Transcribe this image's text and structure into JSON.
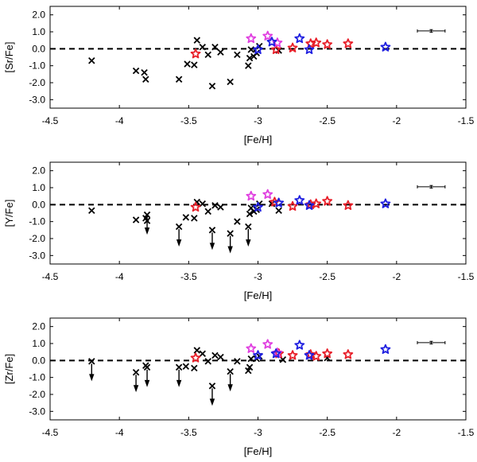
{
  "chart_data": [
    {
      "type": "scatter",
      "ylabel": "[Sr/Fe]",
      "xlabel": "[Fe/H]",
      "xlim": [
        -4.5,
        -1.5
      ],
      "ylim": [
        -3.5,
        2.5
      ],
      "xticks": [
        "-4.5",
        "-4",
        "-3.5",
        "-3",
        "-2.5",
        "-2",
        "-1.5"
      ],
      "yticks": [
        "2.0",
        "1.0",
        "0.0",
        "-1.0",
        "-2.0",
        "-3.0"
      ],
      "reference_line_y": 0,
      "error_bar": {
        "x": -1.75,
        "y": 1.05,
        "xerr": 0.1,
        "yerr": 0.08
      },
      "series": [
        {
          "name": "crosses",
          "marker": "x",
          "color": "#000000",
          "x": [
            -4.2,
            -3.88,
            -3.82,
            -3.81,
            -3.57,
            -3.51,
            -3.46,
            -3.44,
            -3.4,
            -3.36,
            -3.33,
            -3.31,
            -3.27,
            -3.2,
            -3.15,
            -3.07,
            -3.06,
            -3.05,
            -3.03,
            -3.01,
            -2.99,
            -2.85
          ],
          "y": [
            -0.7,
            -1.3,
            -1.4,
            -1.8,
            -1.8,
            -0.9,
            -0.95,
            0.5,
            0.1,
            -0.35,
            -2.2,
            0.1,
            -0.2,
            -1.95,
            -0.35,
            -1.0,
            -0.55,
            -0.05,
            -0.45,
            -0.25,
            0.15,
            -0.1
          ],
          "upper_limits": []
        },
        {
          "name": "red-stars",
          "marker": "star",
          "color": "#e8202a",
          "x": [
            -3.45,
            -2.87,
            -2.75,
            -2.62,
            -2.58,
            -2.5,
            -2.35
          ],
          "y": [
            -0.3,
            -0.05,
            0.05,
            0.3,
            0.35,
            0.25,
            0.3
          ]
        },
        {
          "name": "magenta-stars",
          "marker": "star",
          "color": "#e040e0",
          "x": [
            -3.05,
            -2.93,
            -2.86
          ],
          "y": [
            0.6,
            0.75,
            0.35
          ]
        },
        {
          "name": "blue-stars",
          "marker": "star",
          "color": "#2020e0",
          "x": [
            -3.0,
            -2.9,
            -2.7,
            -2.63,
            -2.08
          ],
          "y": [
            -0.05,
            0.4,
            0.6,
            -0.05,
            0.1
          ]
        }
      ]
    },
    {
      "type": "scatter",
      "ylabel": "[Y/Fe]",
      "xlabel": "[Fe/H]",
      "xlim": [
        -4.5,
        -1.5
      ],
      "ylim": [
        -3.5,
        2.5
      ],
      "xticks": [
        "-4.5",
        "-4",
        "-3.5",
        "-3",
        "-2.5",
        "-2",
        "-1.5"
      ],
      "yticks": [
        "2.0",
        "1.0",
        "0.0",
        "-1.0",
        "-2.0",
        "-3.0"
      ],
      "reference_line_y": 0,
      "error_bar": {
        "x": -1.75,
        "y": 1.05,
        "xerr": 0.1,
        "yerr": 0.08
      },
      "series": [
        {
          "name": "crosses",
          "marker": "x",
          "color": "#000000",
          "x": [
            -4.2,
            -3.88,
            -3.81,
            -3.8,
            -3.8,
            -3.57,
            -3.52,
            -3.46,
            -3.44,
            -3.4,
            -3.36,
            -3.33,
            -3.31,
            -3.27,
            -3.2,
            -3.15,
            -3.07,
            -3.06,
            -3.05,
            -3.03,
            -3.01,
            -2.99,
            -2.9,
            -2.85
          ],
          "y": [
            -0.35,
            -0.9,
            -0.8,
            -0.6,
            -0.95,
            -1.3,
            -0.75,
            -0.8,
            0.15,
            0.05,
            -0.4,
            -1.5,
            -0.05,
            -0.15,
            -1.7,
            -1.0,
            -1.3,
            -0.55,
            -0.2,
            -0.4,
            -0.3,
            0.05,
            0.05,
            -0.35
          ],
          "upper_limits": [
            3,
            5,
            11,
            14,
            16
          ]
        },
        {
          "name": "red-stars",
          "marker": "star",
          "color": "#e8202a",
          "x": [
            -3.45,
            -2.88,
            -2.75,
            -2.62,
            -2.58,
            -2.5,
            -2.35
          ],
          "y": [
            -0.15,
            0.15,
            -0.1,
            0.0,
            0.05,
            0.2,
            -0.05
          ]
        },
        {
          "name": "magenta-stars",
          "marker": "star",
          "color": "#e040e0",
          "x": [
            -3.05,
            -2.93
          ],
          "y": [
            0.5,
            0.6
          ]
        },
        {
          "name": "blue-stars",
          "marker": "star",
          "color": "#2020e0",
          "x": [
            -3.0,
            -2.85,
            -2.7,
            -2.63,
            -2.08
          ],
          "y": [
            -0.15,
            0.1,
            0.25,
            -0.05,
            0.05
          ]
        }
      ]
    },
    {
      "type": "scatter",
      "ylabel": "[Zr/Fe]",
      "xlabel": "[Fe/H]",
      "xlim": [
        -4.5,
        -1.5
      ],
      "ylim": [
        -3.5,
        2.5
      ],
      "xticks": [
        "-4.5",
        "-4",
        "-3.5",
        "-3",
        "-2.5",
        "-2",
        "-1.5"
      ],
      "yticks": [
        "2.0",
        "1.0",
        "0.0",
        "-1.0",
        "-2.0",
        "-3.0"
      ],
      "reference_line_y": 0,
      "error_bar": {
        "x": -1.75,
        "y": 1.05,
        "xerr": 0.1,
        "yerr": 0.08
      },
      "series": [
        {
          "name": "crosses",
          "marker": "x",
          "color": "#000000",
          "x": [
            -4.2,
            -3.88,
            -3.81,
            -3.8,
            -3.57,
            -3.52,
            -3.46,
            -3.44,
            -3.4,
            -3.36,
            -3.33,
            -3.31,
            -3.27,
            -3.2,
            -3.15,
            -3.07,
            -3.06,
            -3.05,
            -3.01,
            -2.99,
            -2.82,
            -2.5
          ],
          "y": [
            -0.05,
            -0.7,
            -0.3,
            -0.4,
            -0.4,
            -0.35,
            -0.45,
            0.6,
            0.4,
            -0.05,
            -1.5,
            0.3,
            0.2,
            -0.65,
            -0.05,
            -0.6,
            -0.4,
            0.1,
            0.1,
            0.25,
            0.05,
            0.15
          ],
          "upper_limits": [
            0,
            1,
            3,
            4,
            10,
            13
          ]
        },
        {
          "name": "red-stars",
          "marker": "star",
          "color": "#e8202a",
          "x": [
            -3.45,
            -2.85,
            -2.75,
            -2.62,
            -2.58,
            -2.5,
            -2.35
          ],
          "y": [
            0.15,
            0.4,
            0.3,
            0.35,
            0.25,
            0.4,
            0.35
          ]
        },
        {
          "name": "magenta-stars",
          "marker": "star",
          "color": "#e040e0",
          "x": [
            -3.05,
            -2.93,
            -2.86
          ],
          "y": [
            0.7,
            0.95,
            0.45
          ]
        },
        {
          "name": "blue-stars",
          "marker": "star",
          "color": "#2020e0",
          "x": [
            -3.0,
            -2.87,
            -2.7,
            -2.63,
            -2.08
          ],
          "y": [
            0.3,
            0.4,
            0.9,
            0.3,
            0.65
          ]
        }
      ]
    }
  ]
}
